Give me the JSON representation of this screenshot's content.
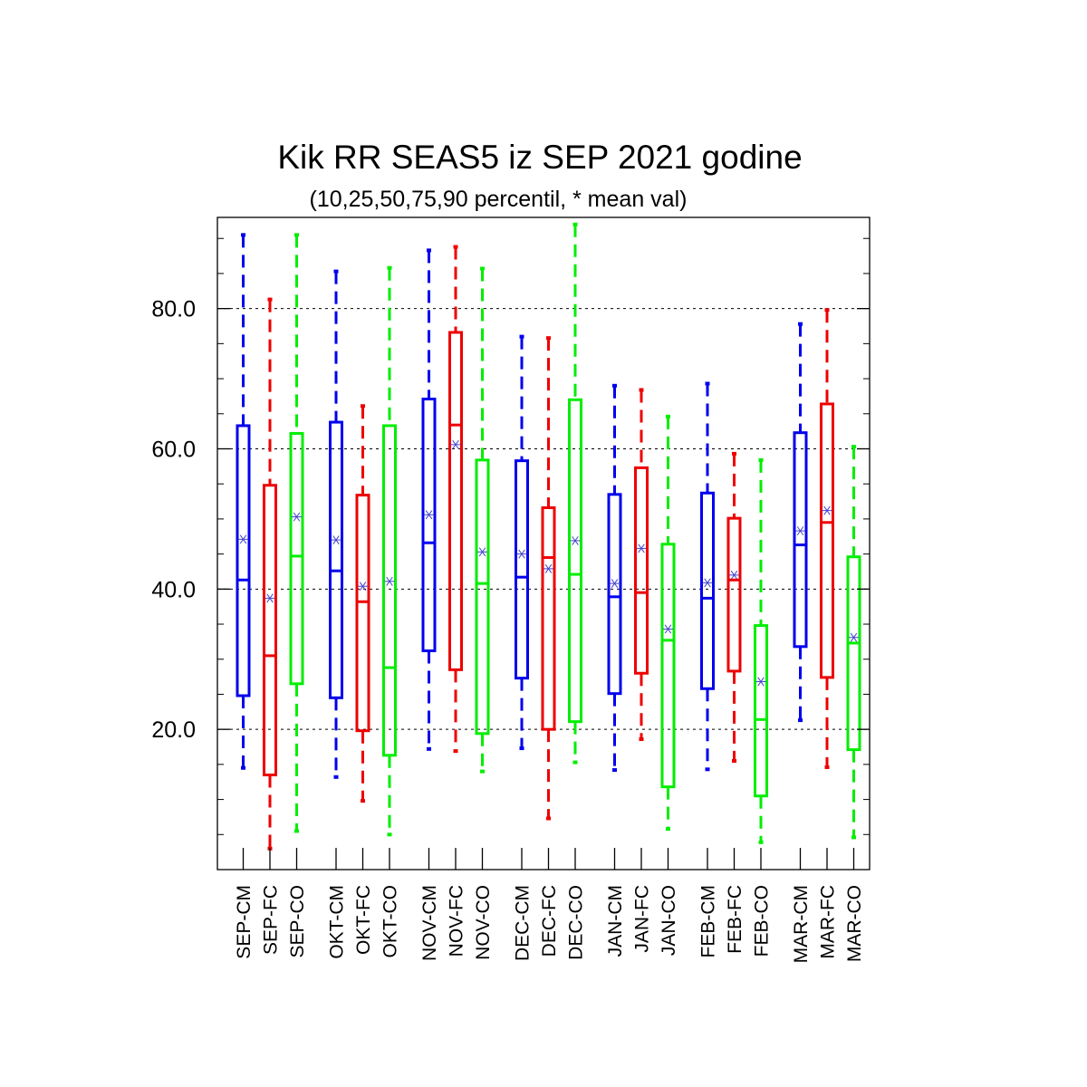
{
  "chart_data": {
    "type": "box",
    "title": "Kik RR SEAS5 iz SEP 2021 godine",
    "subtitle": "(10,25,50,75,90 percentil, * mean val)",
    "ylim": [
      0,
      93
    ],
    "yticks": [
      20,
      40,
      60,
      80
    ],
    "ytick_labels": [
      "20.0",
      "40.0",
      "60.0",
      "80.0"
    ],
    "grid": "horizontal-dotted",
    "series_colors": {
      "CM": "#0000ee",
      "FC": "#ee0000",
      "CO": "#00ee00"
    },
    "mean_marker_color": "#4444cc",
    "boxes": [
      {
        "label": "SEP-CM",
        "group": "CM",
        "p10": 14.5,
        "p25": 24.8,
        "p50": 41.3,
        "p75": 63.3,
        "p90": 90.5,
        "mean": 47.1
      },
      {
        "label": "SEP-FC",
        "group": "FC",
        "p10": 3.0,
        "p25": 13.5,
        "p50": 30.5,
        "p75": 54.8,
        "p90": 81.3,
        "mean": 38.7
      },
      {
        "label": "SEP-CO",
        "group": "CO",
        "p10": 5.5,
        "p25": 26.5,
        "p50": 44.7,
        "p75": 62.2,
        "p90": 90.5,
        "mean": 50.3
      },
      {
        "label": "OKT-CM",
        "group": "CM",
        "p10": 13.2,
        "p25": 24.5,
        "p50": 42.6,
        "p75": 63.8,
        "p90": 85.3,
        "mean": 47.0
      },
      {
        "label": "OKT-FC",
        "group": "FC",
        "p10": 9.8,
        "p25": 19.8,
        "p50": 38.2,
        "p75": 53.4,
        "p90": 66.1,
        "mean": 40.4
      },
      {
        "label": "OKT-CO",
        "group": "CO",
        "p10": 5.0,
        "p25": 16.3,
        "p50": 28.8,
        "p75": 63.3,
        "p90": 85.8,
        "mean": 41.1
      },
      {
        "label": "NOV-CM",
        "group": "CM",
        "p10": 17.2,
        "p25": 31.2,
        "p50": 46.6,
        "p75": 67.1,
        "p90": 88.3,
        "mean": 50.6
      },
      {
        "label": "NOV-FC",
        "group": "FC",
        "p10": 16.9,
        "p25": 28.5,
        "p50": 63.4,
        "p75": 76.6,
        "p90": 88.8,
        "mean": 60.6
      },
      {
        "label": "NOV-CO",
        "group": "CO",
        "p10": 14.0,
        "p25": 19.4,
        "p50": 40.8,
        "p75": 58.4,
        "p90": 85.7,
        "mean": 45.3
      },
      {
        "label": "DEC-CM",
        "group": "CM",
        "p10": 17.3,
        "p25": 27.3,
        "p50": 41.7,
        "p75": 58.3,
        "p90": 76.0,
        "mean": 45.0
      },
      {
        "label": "DEC-FC",
        "group": "FC",
        "p10": 7.3,
        "p25": 20.0,
        "p50": 44.5,
        "p75": 51.6,
        "p90": 75.8,
        "mean": 42.9
      },
      {
        "label": "DEC-CO",
        "group": "CO",
        "p10": 15.3,
        "p25": 21.1,
        "p50": 42.1,
        "p75": 67.0,
        "p90": 92.0,
        "mean": 46.9
      },
      {
        "label": "JAN-CM",
        "group": "CM",
        "p10": 14.2,
        "p25": 25.1,
        "p50": 38.9,
        "p75": 53.5,
        "p90": 69.0,
        "mean": 40.8
      },
      {
        "label": "JAN-FC",
        "group": "FC",
        "p10": 18.6,
        "p25": 28.0,
        "p50": 39.5,
        "p75": 57.3,
        "p90": 68.4,
        "mean": 45.8
      },
      {
        "label": "JAN-CO",
        "group": "CO",
        "p10": 5.8,
        "p25": 11.8,
        "p50": 32.7,
        "p75": 46.4,
        "p90": 64.6,
        "mean": 34.3
      },
      {
        "label": "FEB-CM",
        "group": "CM",
        "p10": 14.3,
        "p25": 25.8,
        "p50": 38.7,
        "p75": 53.7,
        "p90": 69.3,
        "mean": 40.9
      },
      {
        "label": "FEB-FC",
        "group": "FC",
        "p10": 15.5,
        "p25": 28.3,
        "p50": 41.3,
        "p75": 50.1,
        "p90": 59.3,
        "mean": 42.0
      },
      {
        "label": "FEB-CO",
        "group": "CO",
        "p10": 3.9,
        "p25": 10.5,
        "p50": 21.4,
        "p75": 34.8,
        "p90": 58.4,
        "mean": 26.8
      },
      {
        "label": "MAR-CM",
        "group": "CM",
        "p10": 21.3,
        "p25": 31.8,
        "p50": 46.3,
        "p75": 62.3,
        "p90": 77.8,
        "mean": 48.3
      },
      {
        "label": "MAR-FC",
        "group": "FC",
        "p10": 14.6,
        "p25": 27.4,
        "p50": 49.5,
        "p75": 66.4,
        "p90": 79.8,
        "mean": 51.2
      },
      {
        "label": "MAR-CO",
        "group": "CO",
        "p10": 4.6,
        "p25": 17.1,
        "p50": 32.3,
        "p75": 44.6,
        "p90": 60.3,
        "mean": 33.1
      }
    ]
  }
}
